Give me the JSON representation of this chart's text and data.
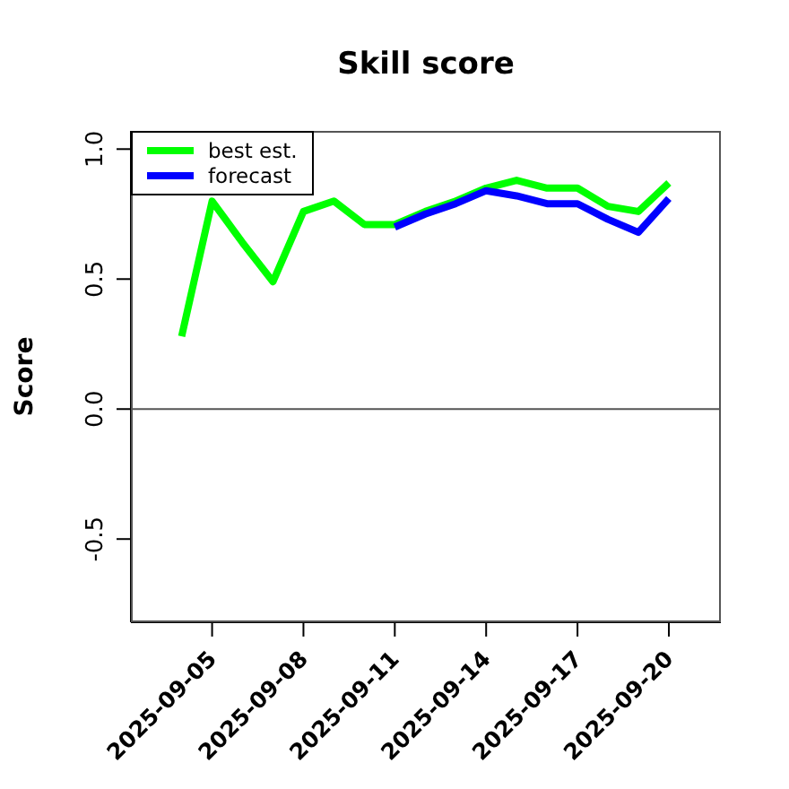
{
  "chart_data": {
    "type": "line",
    "title": "Skill score",
    "ylabel": "Score",
    "xlim": [
      "2025-09-02T08:00",
      "2025-09-21T17:00"
    ],
    "xticks": [
      {
        "value": "2025-09-05",
        "label": "2025-09-05"
      },
      {
        "value": "2025-09-08",
        "label": "2025-09-08"
      },
      {
        "value": "2025-09-11",
        "label": "2025-09-11"
      },
      {
        "value": "2025-09-14",
        "label": "2025-09-14"
      },
      {
        "value": "2025-09-17",
        "label": "2025-09-17"
      },
      {
        "value": "2025-09-20",
        "label": "2025-09-20"
      }
    ],
    "ylim": [
      -0.82,
      1.07
    ],
    "yticks": [
      {
        "value": -0.5,
        "label": "-0.5"
      },
      {
        "value": 0,
        "label": "0.0"
      },
      {
        "value": 0.5,
        "label": "0.5"
      },
      {
        "value": 1,
        "label": "1.0"
      }
    ],
    "series": [
      {
        "name": "best est.",
        "color": "#00ff00",
        "x": [
          "2025-09-04",
          "2025-09-05",
          "2025-09-06",
          "2025-09-07",
          "2025-09-08",
          "2025-09-09",
          "2025-09-10",
          "2025-09-11",
          "2025-09-12",
          "2025-09-13",
          "2025-09-14",
          "2025-09-15",
          "2025-09-16",
          "2025-09-17",
          "2025-09-18",
          "2025-09-19",
          "2025-09-20"
        ],
        "values": [
          0.28,
          0.8,
          0.64,
          0.49,
          0.76,
          0.8,
          0.71,
          0.71,
          0.76,
          0.8,
          0.85,
          0.88,
          0.85,
          0.85,
          0.78,
          0.76,
          0.87
        ]
      },
      {
        "name": "forecast",
        "color": "#0000ff",
        "x": [
          "2025-09-11",
          "2025-09-12",
          "2025-09-13",
          "2025-09-14",
          "2025-09-15",
          "2025-09-16",
          "2025-09-17",
          "2025-09-18",
          "2025-09-19",
          "2025-09-20"
        ],
        "values": [
          0.7,
          0.75,
          0.79,
          0.84,
          0.82,
          0.79,
          0.79,
          0.73,
          0.68,
          0.81
        ]
      }
    ],
    "ref_lines": [
      {
        "axis": "y",
        "value": 0,
        "color": "#555555"
      }
    ],
    "legend": "top left",
    "grid": false,
    "marker": "none",
    "line_style": "solid"
  }
}
